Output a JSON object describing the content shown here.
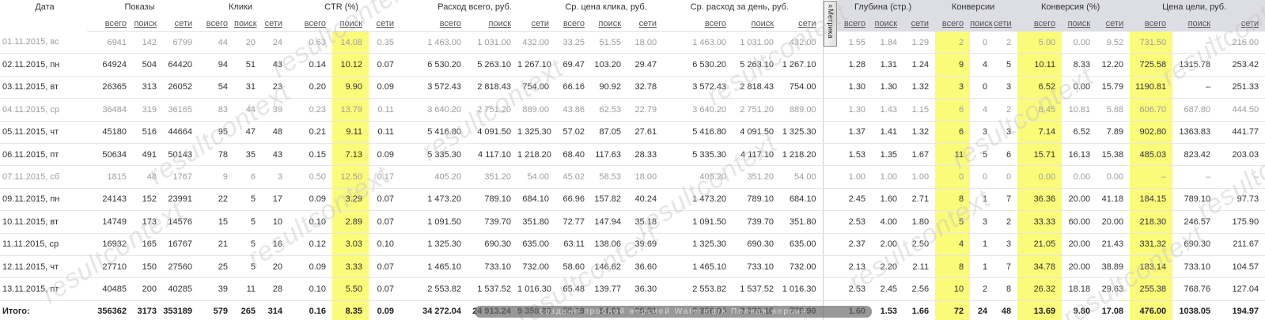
{
  "metrika_tab": {
    "label": "Метрика",
    "arrow": "»"
  },
  "watermark": {
    "diagonal_text": "resultcontext",
    "bar_text": "создано пробной версией   Watermark   Полная версия"
  },
  "colors": {
    "highlight": "#fbfb7a",
    "header_right_bg": "#dddde6"
  },
  "table": {
    "date_header": "Дата",
    "sub_labels": [
      "всего",
      "поиск",
      "сети"
    ],
    "groups": [
      {
        "title": "Показы"
      },
      {
        "title": "Клики"
      },
      {
        "title": "CTR (%)"
      },
      {
        "title": "Расход всего, руб."
      },
      {
        "title": "Ср. цена клика, руб."
      },
      {
        "title": "Ср. расход за день, руб."
      },
      {
        "title": "Глубина (стр.)"
      },
      {
        "title": "Конверсии"
      },
      {
        "title": "Конверсия (%)"
      },
      {
        "title": "Цена цели, руб."
      }
    ],
    "rows": [
      {
        "date": "01.11.2015, вс",
        "muted": true,
        "cells": [
          "6941",
          "142",
          "6799",
          "44",
          "20",
          "24",
          "0.63",
          "14.08",
          "0.35",
          "1 463.00",
          "1 031.00",
          "432.00",
          "33.25",
          "51.55",
          "18.00",
          "1 463.00",
          "1 031.00",
          "432.00",
          "1.55",
          "1.84",
          "1.29",
          "2",
          "0",
          "2",
          "5.00",
          "0.00",
          "9.52",
          "731.50",
          "–",
          "216.00"
        ]
      },
      {
        "date": "02.11.2015, пн",
        "muted": false,
        "cells": [
          "64924",
          "504",
          "64420",
          "94",
          "51",
          "43",
          "0.14",
          "10.12",
          "0.07",
          "6 530.20",
          "5 263.10",
          "1 267.10",
          "69.47",
          "103.20",
          "29.47",
          "6 530.20",
          "5 263.10",
          "1 267.10",
          "1.28",
          "1.31",
          "1.24",
          "9",
          "4",
          "5",
          "10.11",
          "8.33",
          "12.20",
          "725.58",
          "1315.78",
          "253.42"
        ]
      },
      {
        "date": "03.11.2015, вт",
        "muted": false,
        "cells": [
          "26365",
          "313",
          "26052",
          "54",
          "31",
          "23",
          "0.20",
          "9.90",
          "0.09",
          "3 572.43",
          "2 818.43",
          "754.00",
          "66.16",
          "90.92",
          "32.78",
          "3 572.43",
          "2 818.43",
          "754.00",
          "1.30",
          "1.30",
          "1.32",
          "3",
          "0",
          "3",
          "6.52",
          "0.00",
          "15.79",
          "1190.81",
          "–",
          "251.33"
        ]
      },
      {
        "date": "04.11.2015, ср",
        "muted": true,
        "cells": [
          "36484",
          "319",
          "36165",
          "83",
          "44",
          "39",
          "0.23",
          "13.79",
          "0.11",
          "3 640.20",
          "2 751.20",
          "889.00",
          "43.86",
          "62.53",
          "22.79",
          "3 640.20",
          "2 751.20",
          "889.00",
          "1.30",
          "1.43",
          "1.15",
          "6",
          "4",
          "2",
          "8.45",
          "10.81",
          "5.88",
          "606.70",
          "687.80",
          "444.50"
        ]
      },
      {
        "date": "05.11.2015, чт",
        "muted": false,
        "cells": [
          "45180",
          "516",
          "44664",
          "95",
          "47",
          "48",
          "0.21",
          "9.11",
          "0.11",
          "5 416.80",
          "4 091.50",
          "1 325.30",
          "57.02",
          "87.05",
          "27.61",
          "5 416.80",
          "4 091.50",
          "1 325.30",
          "1.37",
          "1.41",
          "1.32",
          "6",
          "3",
          "3",
          "7.14",
          "6.52",
          "7.89",
          "902.80",
          "1363.83",
          "441.77"
        ]
      },
      {
        "date": "06.11.2015, пт",
        "muted": false,
        "cells": [
          "50634",
          "491",
          "50143",
          "78",
          "35",
          "43",
          "0.15",
          "7.13",
          "0.09",
          "5 335.30",
          "4 117.10",
          "1 218.20",
          "68.40",
          "117.63",
          "28.33",
          "5 335.30",
          "4 117.10",
          "1 218.20",
          "1.53",
          "1.35",
          "1.67",
          "11",
          "5",
          "6",
          "15.71",
          "16.13",
          "15.38",
          "485.03",
          "823.42",
          "203.03"
        ]
      },
      {
        "date": "07.11.2015, сб",
        "muted": true,
        "cells": [
          "1815",
          "48",
          "1767",
          "9",
          "6",
          "3",
          "0.50",
          "12.50",
          "0.17",
          "405.20",
          "351.20",
          "54.00",
          "45.02",
          "58.53",
          "18.00",
          "405.20",
          "351.20",
          "54.00",
          "1.00",
          "1.00",
          "1.00",
          "0",
          "0",
          "0",
          "0.00",
          "0.00",
          "0.00",
          "–",
          "–",
          "–"
        ]
      },
      {
        "date": "09.11.2015, пн",
        "muted": false,
        "cells": [
          "24143",
          "152",
          "23991",
          "22",
          "5",
          "17",
          "0.09",
          "3.29",
          "0.07",
          "1 473.20",
          "789.10",
          "684.10",
          "66.96",
          "157.82",
          "40.24",
          "1 473.20",
          "789.10",
          "684.10",
          "2.45",
          "1.60",
          "2.71",
          "8",
          "1",
          "7",
          "36.36",
          "20.00",
          "41.18",
          "184.15",
          "789.10",
          "97.73"
        ]
      },
      {
        "date": "10.11.2015, вт",
        "muted": false,
        "cells": [
          "14749",
          "173",
          "14576",
          "15",
          "5",
          "10",
          "0.10",
          "2.89",
          "0.07",
          "1 091.50",
          "739.70",
          "351.80",
          "72.77",
          "147.94",
          "35.18",
          "1 091.50",
          "739.70",
          "351.80",
          "2.53",
          "4.00",
          "1.80",
          "5",
          "3",
          "2",
          "33.33",
          "60.00",
          "20.00",
          "218.30",
          "246.57",
          "175.90"
        ]
      },
      {
        "date": "11.11.2015, ср",
        "muted": false,
        "cells": [
          "16932",
          "165",
          "16767",
          "21",
          "5",
          "16",
          "0.12",
          "3.03",
          "0.10",
          "1 325.30",
          "690.30",
          "635.00",
          "63.11",
          "138.06",
          "39.69",
          "1 325.30",
          "690.30",
          "635.00",
          "2.37",
          "2.00",
          "2.50",
          "4",
          "1",
          "3",
          "21.05",
          "20.00",
          "21.43",
          "331.32",
          "690.30",
          "211.67"
        ]
      },
      {
        "date": "12.11.2015, чт",
        "muted": false,
        "cells": [
          "27710",
          "150",
          "27560",
          "25",
          "5",
          "20",
          "0.09",
          "3.33",
          "0.07",
          "1 465.10",
          "733.10",
          "732.00",
          "58.60",
          "146.62",
          "36.60",
          "1 465.10",
          "733.10",
          "732.00",
          "2.13",
          "2.20",
          "2.11",
          "8",
          "1",
          "7",
          "34.78",
          "20.00",
          "38.89",
          "183.14",
          "733.10",
          "104.57"
        ]
      },
      {
        "date": "13.11.2015, пт",
        "muted": false,
        "cells": [
          "40485",
          "200",
          "40285",
          "39",
          "11",
          "28",
          "0.10",
          "5.50",
          "0.07",
          "2 553.82",
          "1 537.52",
          "1 016.30",
          "65.48",
          "139.77",
          "36.30",
          "2 553.82",
          "1 537.52",
          "1 016.30",
          "2.53",
          "2.45",
          "2.56",
          "10",
          "2",
          "8",
          "26.32",
          "18.18",
          "29.63",
          "255.38",
          "768.76",
          "127.04"
        ]
      }
    ],
    "total": {
      "label": "Итого:",
      "cells": [
        "356362",
        "3173",
        "353189",
        "579",
        "265",
        "314",
        "0.16",
        "8.35",
        "0.09",
        "34 272.04",
        "24 913.24",
        "9 358.80",
        "59.19",
        "94.01",
        "29.81",
        "2 856.00",
        "2 076.10",
        "779.90",
        "1.60",
        "1.53",
        "1.66",
        "72",
        "24",
        "48",
        "13.69",
        "9.80",
        "17.08",
        "476.00",
        "1038.05",
        "194.97"
      ]
    }
  }
}
